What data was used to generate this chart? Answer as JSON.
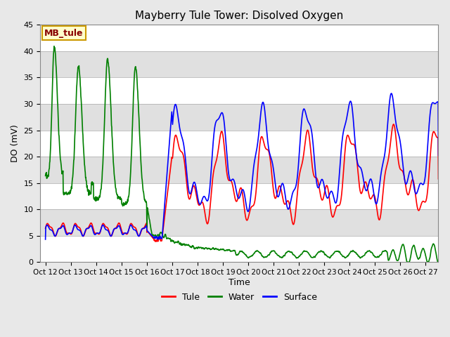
{
  "title": "Mayberry Tule Tower: Disolved Oxygen",
  "ylabel": "DO (mV)",
  "xlabel": "Time",
  "ylim": [
    0,
    45
  ],
  "bg_color": "#e8e8e8",
  "grid_color": "white",
  "xtick_labels": [
    "Oct 12",
    "Oct 13",
    "Oct 14",
    "Oct 15",
    "Oct 16",
    "Oct 17",
    "Oct 18",
    "Oct 19",
    "Oct 20",
    "Oct 21",
    "Oct 22",
    "Oct 23",
    "Oct 24",
    "Oct 25",
    "Oct 26",
    "Oct 27"
  ],
  "ytick_values": [
    0,
    5,
    10,
    15,
    20,
    25,
    30,
    35,
    40,
    45
  ],
  "annotation_text": "MB_tule",
  "annotation_bg": "#ffffcc",
  "annotation_border": "#cc9900",
  "line_colors": {
    "tule": "red",
    "water": "green",
    "surface": "blue"
  },
  "line_width": 1.2,
  "band_colors": [
    "white",
    "#e0e0e0"
  ]
}
